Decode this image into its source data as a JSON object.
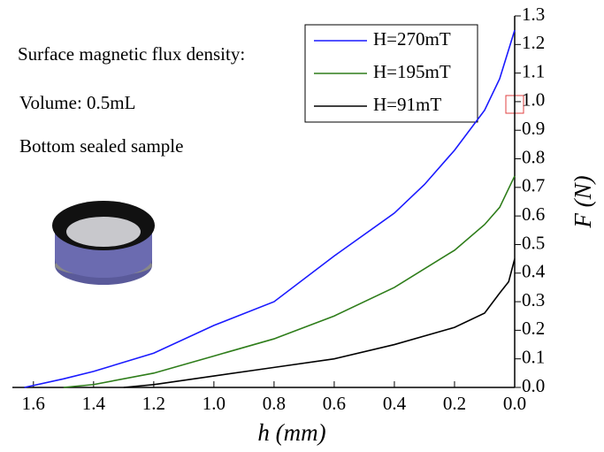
{
  "chart_data": {
    "type": "line",
    "annotations": [
      "Surface magnetic flux density:",
      "Volume: 0.5mL",
      "Bottom sealed sample"
    ],
    "x_label": "h (mm)",
    "y_label": "F (N)",
    "xlim": [
      1.67,
      0
    ],
    "ylim": [
      0,
      1.3
    ],
    "xticks": [
      1.6,
      1.4,
      1.2,
      {
        "value": 1.0,
        "label": "1.0"
      },
      0.8,
      0.6,
      0.4,
      0.2,
      {
        "value": 0,
        "label": "0.0"
      }
    ],
    "yticks": [
      {
        "value": 0,
        "label": "0.0"
      },
      0.1,
      0.2,
      0.3,
      0.4,
      0.5,
      0.6,
      0.7,
      0.8,
      0.9,
      {
        "value": 1.0,
        "label": "1.0"
      },
      1.1,
      1.2,
      1.3
    ],
    "legend": "upper right",
    "series": [
      {
        "name": "H=270mT",
        "color": "#1a1aff",
        "x": [
          1.63,
          1.5,
          1.4,
          1.2,
          1.0,
          0.8,
          0.6,
          0.4,
          0.3,
          0.2,
          0.1,
          0.05,
          0
        ],
        "values": [
          0,
          0.03,
          0.056,
          0.12,
          0.217,
          0.3,
          0.46,
          0.61,
          0.71,
          0.83,
          0.97,
          1.08,
          1.25
        ]
      },
      {
        "name": "H=195mT",
        "color": "#2e7d1a",
        "x": [
          1.5,
          1.4,
          1.2,
          1.0,
          0.8,
          0.6,
          0.4,
          0.2,
          0.1,
          0.05,
          0
        ],
        "values": [
          0,
          0.01,
          0.05,
          0.11,
          0.17,
          0.25,
          0.35,
          0.48,
          0.57,
          0.63,
          0.74
        ]
      },
      {
        "name": "H=91mT",
        "color": "#000000",
        "x": [
          1.3,
          1.2,
          1.0,
          0.8,
          0.6,
          0.4,
          0.2,
          0.1,
          0.05,
          0.02,
          0
        ],
        "values": [
          0,
          0.01,
          0.04,
          0.07,
          0.1,
          0.15,
          0.21,
          0.26,
          0.33,
          0.37,
          0.45
        ]
      }
    ]
  }
}
